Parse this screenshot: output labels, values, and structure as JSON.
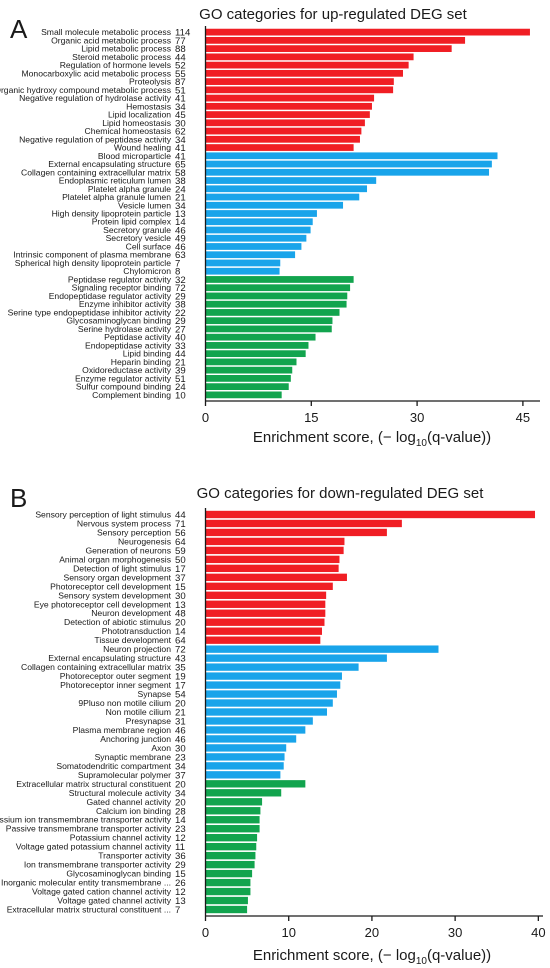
{
  "colors": {
    "red": "#f01e24",
    "blue": "#19a4ea",
    "green": "#12a44e",
    "axis": "#1a1a1a"
  },
  "axis_title": {
    "prefix": "Enrichment score,  (− log",
    "sub": "10",
    "suffix": "(q-value))"
  },
  "chart_data": [
    {
      "type": "bar",
      "orientation": "horizontal",
      "panel": "A",
      "title": "GO categories for up-regulated DEG set",
      "xlabel": "Enrichment score,  (− log10(q-value))",
      "xlim": [
        0,
        47
      ],
      "xticks": [
        0,
        15,
        30,
        45
      ],
      "grid": false,
      "legend": "none",
      "bars": [
        {
          "label": "Small molecule metabolic process",
          "count": "114",
          "value": 46.0,
          "group": "red"
        },
        {
          "label": "Organic acid metabolic process",
          "count": "77",
          "value": 36.8,
          "group": "red"
        },
        {
          "label": "Lipid metabolic process",
          "count": "88",
          "value": 34.9,
          "group": "red"
        },
        {
          "label": "Steroid metabolic process",
          "count": "44",
          "value": 29.5,
          "group": "red"
        },
        {
          "label": "Regulation of hormone levels",
          "count": "52",
          "value": 28.8,
          "group": "red"
        },
        {
          "label": "Monocarboxylic acid metabolic process",
          "count": "55",
          "value": 28.0,
          "group": "red"
        },
        {
          "label": "Proteolysis",
          "count": "87",
          "value": 26.7,
          "group": "red"
        },
        {
          "label": "Organic hydroxy compound metabolic process",
          "count": "51",
          "value": 26.6,
          "group": "red"
        },
        {
          "label": "Negative regulation of hydrolase activity",
          "count": "41",
          "value": 23.9,
          "group": "red"
        },
        {
          "label": "Hemostasis",
          "count": "34",
          "value": 23.6,
          "group": "red"
        },
        {
          "label": "Lipid localization",
          "count": "45",
          "value": 23.3,
          "group": "red"
        },
        {
          "label": "Lipid homeostasis",
          "count": "30",
          "value": 22.6,
          "group": "red"
        },
        {
          "label": "Chemical homeostasis",
          "count": "62",
          "value": 22.1,
          "group": "red"
        },
        {
          "label": "Negative regulation of peptidase activity",
          "count": "34",
          "value": 21.9,
          "group": "red"
        },
        {
          "label": "Wound healing",
          "count": "41",
          "value": 21.0,
          "group": "red"
        },
        {
          "label": "Blood microparticle",
          "count": "41",
          "value": 41.4,
          "group": "blue"
        },
        {
          "label": "External encapsulating structure",
          "count": "65",
          "value": 40.6,
          "group": "blue"
        },
        {
          "label": "Collagen containing extracellular matrix",
          "count": "58",
          "value": 40.2,
          "group": "blue"
        },
        {
          "label": "Endoplasmic reticulum lumen",
          "count": "38",
          "value": 24.2,
          "group": "blue"
        },
        {
          "label": "Platelet alpha granule",
          "count": "24",
          "value": 22.9,
          "group": "blue"
        },
        {
          "label": "Platelet alpha granule lumen",
          "count": "21",
          "value": 21.8,
          "group": "blue"
        },
        {
          "label": "Vesicle lumen",
          "count": "34",
          "value": 19.5,
          "group": "blue"
        },
        {
          "label": "High density lipoprotein particle",
          "count": "13",
          "value": 15.8,
          "group": "blue"
        },
        {
          "label": "Protein lipid complex",
          "count": "14",
          "value": 15.2,
          "group": "blue"
        },
        {
          "label": "Secretory granule",
          "count": "46",
          "value": 14.9,
          "group": "blue"
        },
        {
          "label": "Secretory vesicle",
          "count": "49",
          "value": 14.3,
          "group": "blue"
        },
        {
          "label": "Cell surface",
          "count": "46",
          "value": 13.6,
          "group": "blue"
        },
        {
          "label": "Intrinsic component of plasma membrane",
          "count": "63",
          "value": 12.7,
          "group": "blue"
        },
        {
          "label": "Spherical high density lipoprotein particle",
          "count": "7",
          "value": 10.6,
          "group": "blue"
        },
        {
          "label": "Chylomicron",
          "count": "8",
          "value": 10.5,
          "group": "blue"
        },
        {
          "label": "Peptidase regulator activity",
          "count": "32",
          "value": 21.0,
          "group": "green"
        },
        {
          "label": "Signaling receptor binding",
          "count": "72",
          "value": 20.5,
          "group": "green"
        },
        {
          "label": "Endopeptidase regulator activity",
          "count": "29",
          "value": 20.1,
          "group": "green"
        },
        {
          "label": "Enzyme inhibitor activity",
          "count": "38",
          "value": 20.0,
          "group": "green"
        },
        {
          "label": "Serine type endopeptidase inhibitor activity",
          "count": "22",
          "value": 19.0,
          "group": "green"
        },
        {
          "label": "Glycosaminoglycan binding",
          "count": "29",
          "value": 18.0,
          "group": "green"
        },
        {
          "label": "Serine hydrolase activity",
          "count": "27",
          "value": 17.9,
          "group": "green"
        },
        {
          "label": "Peptidase activity",
          "count": "40",
          "value": 15.6,
          "group": "green"
        },
        {
          "label": "Endopeptidase activity",
          "count": "33",
          "value": 14.6,
          "group": "green"
        },
        {
          "label": "Lipid binding",
          "count": "44",
          "value": 14.2,
          "group": "green"
        },
        {
          "label": "Heparin binding",
          "count": "21",
          "value": 12.9,
          "group": "green"
        },
        {
          "label": "Oxidoreductase activity",
          "count": "39",
          "value": 12.3,
          "group": "green"
        },
        {
          "label": "Enzyme regulator activity",
          "count": "51",
          "value": 12.1,
          "group": "green"
        },
        {
          "label": "Sulfur compound binding",
          "count": "24",
          "value": 11.8,
          "group": "green"
        },
        {
          "label": "Complement binding",
          "count": "10",
          "value": 10.8,
          "group": "green"
        }
      ]
    },
    {
      "type": "bar",
      "orientation": "horizontal",
      "panel": "B",
      "title": "GO categories for down-regulated DEG set",
      "xlabel": "Enrichment score,  (− log10(q-value))",
      "xlim": [
        0,
        40.2
      ],
      "xticks": [
        0,
        10,
        20,
        30,
        40
      ],
      "grid": false,
      "legend": "none",
      "bars": [
        {
          "label": "Sensory perception of light stimulus",
          "count": "44",
          "value": 39.6,
          "group": "red"
        },
        {
          "label": "Nervous system process",
          "count": "71",
          "value": 23.6,
          "group": "red"
        },
        {
          "label": "Sensory perception",
          "count": "56",
          "value": 21.8,
          "group": "red"
        },
        {
          "label": "Neurogenesis",
          "count": "64",
          "value": 16.7,
          "group": "red"
        },
        {
          "label": "Generation of neurons",
          "count": "59",
          "value": 16.6,
          "group": "red"
        },
        {
          "label": "Animal organ morphogenesis",
          "count": "50",
          "value": 16.1,
          "group": "red"
        },
        {
          "label": "Detection of light stimulus",
          "count": "17",
          "value": 16.0,
          "group": "red"
        },
        {
          "label": "Sensory organ development",
          "count": "37",
          "value": 17.0,
          "group": "red"
        },
        {
          "label": "Photoreceptor cell development",
          "count": "15",
          "value": 15.3,
          "group": "red"
        },
        {
          "label": "Sensory system development",
          "count": "30",
          "value": 14.5,
          "group": "red"
        },
        {
          "label": "Eye photoreceptor cell development",
          "count": "13",
          "value": 14.4,
          "group": "red"
        },
        {
          "label": "Neuron development",
          "count": "48",
          "value": 14.4,
          "group": "red"
        },
        {
          "label": "Detection of abiotic stimulus",
          "count": "20",
          "value": 14.3,
          "group": "red"
        },
        {
          "label": "Phototransduction",
          "count": "14",
          "value": 14.0,
          "group": "red"
        },
        {
          "label": "Tissue development",
          "count": "64",
          "value": 13.8,
          "group": "red"
        },
        {
          "label": "Neuron projection",
          "count": "72",
          "value": 28.0,
          "group": "blue"
        },
        {
          "label": "External encapsulating structure",
          "count": "43",
          "value": 21.8,
          "group": "blue"
        },
        {
          "label": "Collagen containing extracellular matrix",
          "count": "35",
          "value": 18.4,
          "group": "blue"
        },
        {
          "label": "Photoreceptor outer segment",
          "count": "19",
          "value": 16.4,
          "group": "blue"
        },
        {
          "label": "Photoreceptor inner segment",
          "count": "17",
          "value": 16.2,
          "group": "blue"
        },
        {
          "label": "Synapse",
          "count": "54",
          "value": 15.8,
          "group": "blue"
        },
        {
          "label": "9Pluso non motile cilium",
          "count": "20",
          "value": 15.3,
          "group": "blue"
        },
        {
          "label": "Non motile cilium",
          "count": "21",
          "value": 14.6,
          "group": "blue"
        },
        {
          "label": "Presynapse",
          "count": "31",
          "value": 12.9,
          "group": "blue"
        },
        {
          "label": "Plasma membrane region",
          "count": "46",
          "value": 12.0,
          "group": "blue"
        },
        {
          "label": "Anchoring junction",
          "count": "46",
          "value": 10.9,
          "group": "blue"
        },
        {
          "label": "Axon",
          "count": "30",
          "value": 9.7,
          "group": "blue"
        },
        {
          "label": "Synaptic membrane",
          "count": "23",
          "value": 9.5,
          "group": "blue"
        },
        {
          "label": "Somatodendritic compartment",
          "count": "34",
          "value": 9.4,
          "group": "blue"
        },
        {
          "label": "Supramolecular polymer",
          "count": "37",
          "value": 9.0,
          "group": "blue"
        },
        {
          "label": "Extracellular matrix structural constituent",
          "count": "20",
          "value": 12.0,
          "group": "green"
        },
        {
          "label": "Structural molecule activity",
          "count": "34",
          "value": 9.1,
          "group": "green"
        },
        {
          "label": "Gated channel activity",
          "count": "20",
          "value": 6.8,
          "group": "green"
        },
        {
          "label": "Calcium ion binding",
          "count": "28",
          "value": 6.6,
          "group": "green"
        },
        {
          "label": "Potassium ion transmembrane transporter activity",
          "count": "14",
          "value": 6.5,
          "group": "green"
        },
        {
          "label": "Passive transmembrane transporter activity",
          "count": "23",
          "value": 6.5,
          "group": "green"
        },
        {
          "label": "Potassium channel activity",
          "count": "12",
          "value": 6.2,
          "group": "green"
        },
        {
          "label": "Voltage gated potassium channel activity",
          "count": "11",
          "value": 6.1,
          "group": "green"
        },
        {
          "label": "Transporter activity",
          "count": "36",
          "value": 6.0,
          "group": "green"
        },
        {
          "label": "Ion transmembrane transporter activity",
          "count": "29",
          "value": 5.9,
          "group": "green"
        },
        {
          "label": "Glycosaminoglycan binding",
          "count": "15",
          "value": 5.6,
          "group": "green"
        },
        {
          "label": "Inorganic molecular entity transmembrane ...",
          "count": "26",
          "value": 5.4,
          "group": "green"
        },
        {
          "label": "Voltage gated cation channel activity",
          "count": "12",
          "value": 5.4,
          "group": "green"
        },
        {
          "label": "Voltage gated channel activity",
          "count": "13",
          "value": 5.1,
          "group": "green"
        },
        {
          "label": "Extracellular matrix structural constituent ...",
          "count": "7",
          "value": 5.0,
          "group": "green"
        }
      ]
    }
  ]
}
